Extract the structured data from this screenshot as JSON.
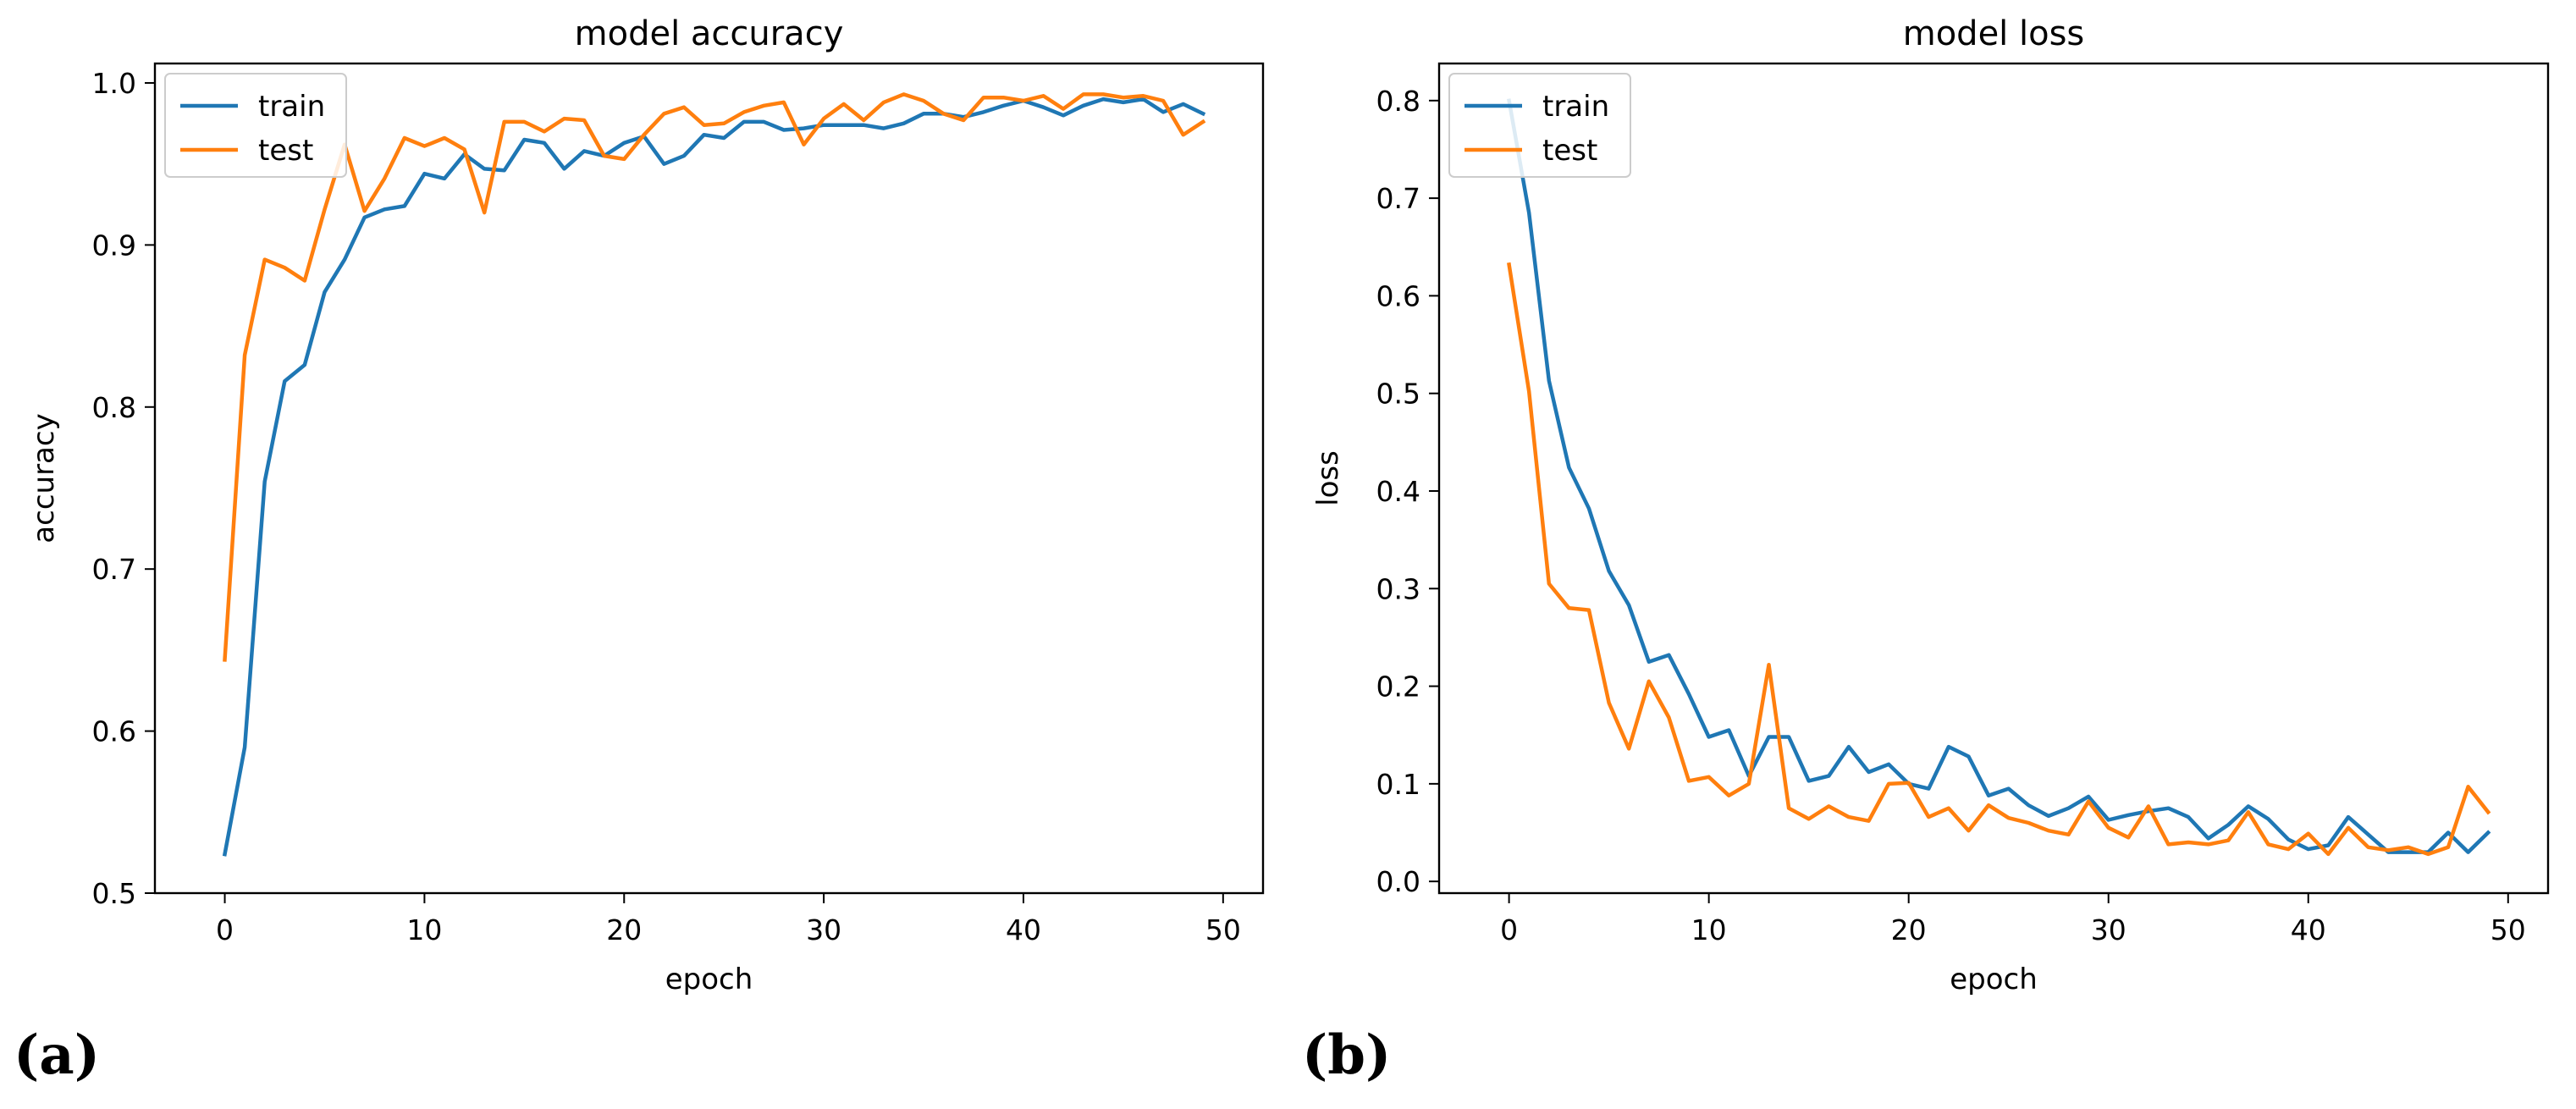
{
  "colors": {
    "train": "#1f77b4",
    "test": "#ff7f0e",
    "axis": "#000000",
    "legend_border": "#cccccc"
  },
  "panels": {
    "a": "(a)",
    "b": "(b)"
  },
  "chart_data": [
    {
      "id": "accuracy",
      "type": "line",
      "title": "model accuracy",
      "xlabel": "epoch",
      "ylabel": "accuracy",
      "xlim": [
        -3.5,
        52
      ],
      "ylim": [
        0.5,
        1.012
      ],
      "xticks": [
        0,
        10,
        20,
        30,
        40,
        50
      ],
      "yticks": [
        0.5,
        0.6,
        0.7,
        0.8,
        0.9,
        1.0
      ],
      "ytick_labels": [
        "0.5",
        "0.6",
        "0.7",
        "0.8",
        "0.9",
        "1.0"
      ],
      "grid": false,
      "legend": "upper left",
      "x": [
        0,
        1,
        2,
        3,
        4,
        5,
        6,
        7,
        8,
        9,
        10,
        11,
        12,
        13,
        14,
        15,
        16,
        17,
        18,
        19,
        20,
        21,
        22,
        23,
        24,
        25,
        26,
        27,
        28,
        29,
        30,
        31,
        32,
        33,
        34,
        35,
        36,
        37,
        38,
        39,
        40,
        41,
        42,
        43,
        44,
        45,
        46,
        47,
        48,
        49
      ],
      "series": [
        {
          "name": "train",
          "values": [
            0.524,
            0.59,
            0.754,
            0.816,
            0.826,
            0.871,
            0.891,
            0.917,
            0.922,
            0.924,
            0.944,
            0.941,
            0.956,
            0.947,
            0.946,
            0.965,
            0.963,
            0.947,
            0.958,
            0.955,
            0.963,
            0.967,
            0.95,
            0.955,
            0.968,
            0.966,
            0.976,
            0.976,
            0.971,
            0.972,
            0.974,
            0.974,
            0.974,
            0.972,
            0.975,
            0.981,
            0.981,
            0.979,
            0.982,
            0.986,
            0.989,
            0.985,
            0.98,
            0.986,
            0.99,
            0.988,
            0.99,
            0.982,
            0.987,
            0.981
          ]
        },
        {
          "name": "test",
          "values": [
            0.644,
            0.832,
            0.891,
            0.886,
            0.878,
            0.922,
            0.962,
            0.921,
            0.941,
            0.966,
            0.961,
            0.966,
            0.959,
            0.92,
            0.976,
            0.976,
            0.97,
            0.978,
            0.977,
            0.955,
            0.953,
            0.968,
            0.981,
            0.985,
            0.974,
            0.975,
            0.982,
            0.986,
            0.988,
            0.962,
            0.978,
            0.987,
            0.977,
            0.988,
            0.993,
            0.989,
            0.981,
            0.977,
            0.991,
            0.991,
            0.989,
            0.992,
            0.984,
            0.993,
            0.993,
            0.991,
            0.992,
            0.989,
            0.968,
            0.976
          ]
        }
      ]
    },
    {
      "id": "loss",
      "type": "line",
      "title": "model loss",
      "xlabel": "epoch",
      "ylabel": "loss",
      "xlim": [
        -3.5,
        52
      ],
      "ylim": [
        -0.012,
        0.838
      ],
      "xticks": [
        0,
        10,
        20,
        30,
        40,
        50
      ],
      "yticks": [
        0.0,
        0.1,
        0.2,
        0.3,
        0.4,
        0.5,
        0.6,
        0.7,
        0.8
      ],
      "ytick_labels": [
        "0.0",
        "0.1",
        "0.2",
        "0.3",
        "0.4",
        "0.5",
        "0.6",
        "0.7",
        "0.8"
      ],
      "grid": false,
      "legend": "upper left",
      "x": [
        0,
        1,
        2,
        3,
        4,
        5,
        6,
        7,
        8,
        9,
        10,
        11,
        12,
        13,
        14,
        15,
        16,
        17,
        18,
        19,
        20,
        21,
        22,
        23,
        24,
        25,
        26,
        27,
        28,
        29,
        30,
        31,
        32,
        33,
        34,
        35,
        36,
        37,
        38,
        39,
        40,
        41,
        42,
        43,
        44,
        45,
        46,
        47,
        48,
        49
      ],
      "series": [
        {
          "name": "train",
          "values": [
            0.8,
            0.685,
            0.513,
            0.424,
            0.382,
            0.318,
            0.283,
            0.225,
            0.232,
            0.192,
            0.148,
            0.155,
            0.108,
            0.148,
            0.148,
            0.103,
            0.108,
            0.138,
            0.112,
            0.12,
            0.1,
            0.095,
            0.138,
            0.128,
            0.088,
            0.095,
            0.078,
            0.067,
            0.075,
            0.087,
            0.063,
            0.068,
            0.072,
            0.075,
            0.066,
            0.044,
            0.058,
            0.077,
            0.064,
            0.043,
            0.033,
            0.037,
            0.066,
            0.048,
            0.03,
            0.03,
            0.03,
            0.05,
            0.03,
            0.05
          ]
        },
        {
          "name": "test",
          "values": [
            0.632,
            0.502,
            0.305,
            0.28,
            0.278,
            0.183,
            0.136,
            0.205,
            0.168,
            0.103,
            0.107,
            0.088,
            0.1,
            0.222,
            0.075,
            0.064,
            0.077,
            0.066,
            0.062,
            0.1,
            0.101,
            0.066,
            0.075,
            0.052,
            0.078,
            0.065,
            0.06,
            0.052,
            0.048,
            0.082,
            0.055,
            0.045,
            0.077,
            0.038,
            0.04,
            0.038,
            0.042,
            0.071,
            0.038,
            0.033,
            0.049,
            0.028,
            0.055,
            0.035,
            0.032,
            0.035,
            0.028,
            0.035,
            0.097,
            0.071
          ]
        }
      ]
    }
  ]
}
